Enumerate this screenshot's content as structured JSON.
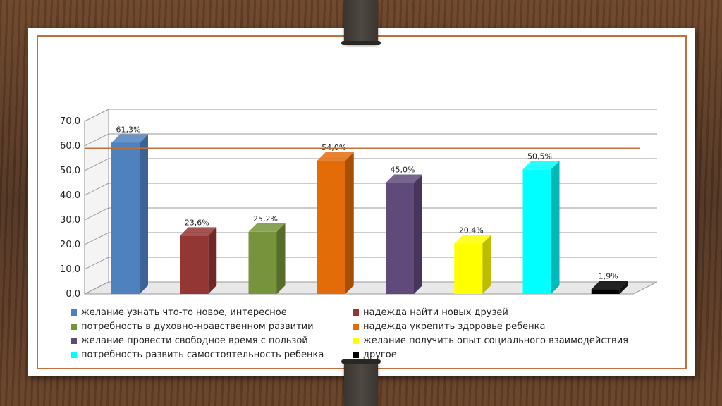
{
  "chart_data": {
    "type": "bar",
    "title": "",
    "ylim": [
      0,
      70
    ],
    "y_ticks": [
      "0,0",
      "10,0",
      "20,0",
      "30,0",
      "40,0",
      "50,0",
      "60,0",
      "70,0"
    ],
    "grid": true,
    "reference_line": 59,
    "legend_position": "bottom",
    "series": [
      {
        "name": "желание узнать что-то новое, интересное",
        "value": 61.3,
        "label": "61,3%",
        "color": "#4f81bd",
        "side": "#3b6396"
      },
      {
        "name": "надежда найти новых друзей",
        "value": 23.6,
        "label": "23,6%",
        "color": "#943634",
        "side": "#6e2826"
      },
      {
        "name": "потребность в духовно-нравственном развитии",
        "value": 25.2,
        "label": "25,2%",
        "color": "#77933c",
        "side": "#576d2c"
      },
      {
        "name": "надежда укрепить здоровье ребенка",
        "value": 54.0,
        "label": "54,0%",
        "color": "#e36c09",
        "side": "#a84f06"
      },
      {
        "name": "желание провести свободное время с пользой",
        "value": 45.0,
        "label": "45,0%",
        "color": "#604a7b",
        "side": "#46365b"
      },
      {
        "name": "желание получить опыт социального взаимодействия",
        "value": 20.4,
        "label": "20,4%",
        "color": "#ffff00",
        "side": "#bdbd00"
      },
      {
        "name": "потребность развить самостоятельность ребенка",
        "value": 50.5,
        "label": "50,5%",
        "color": "#00ffff",
        "side": "#00b8b8"
      },
      {
        "name": "другое",
        "value": 1.9,
        "label": "1,9%",
        "color": "#000000",
        "side": "#111111"
      }
    ]
  }
}
